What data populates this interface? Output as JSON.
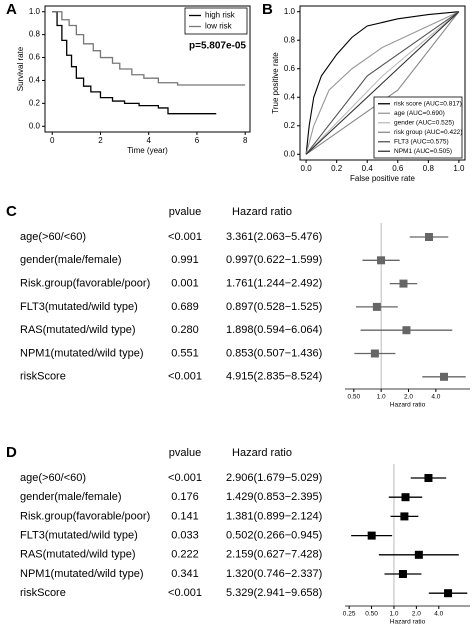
{
  "chart_data": [
    {
      "type": "step",
      "panel": "A",
      "xlabel": "Time (year)",
      "ylabel": "Survival rate",
      "annotation": "p=5.807e-05",
      "xlim": [
        -0.3,
        8.2
      ],
      "ylim": [
        -0.05,
        1.05
      ],
      "xticks": [
        0,
        2,
        4,
        6,
        8
      ],
      "yticks": [
        {
          "value": 0,
          "label": "0.0"
        },
        0.2,
        0.4,
        0.6,
        0.8,
        {
          "value": 1,
          "label": "1.0"
        }
      ],
      "legend": "upper right",
      "series": [
        {
          "name": "high risk",
          "color": "#000000",
          "x": [
            0,
            0.2,
            0.4,
            0.6,
            0.8,
            1.0,
            1.3,
            1.6,
            2.0,
            2.5,
            3.0,
            3.6,
            4.4,
            4.8,
            6.8
          ],
          "values": [
            1,
            0.88,
            0.75,
            0.62,
            0.52,
            0.42,
            0.35,
            0.3,
            0.25,
            0.22,
            0.2,
            0.18,
            0.16,
            0.11,
            0.11
          ]
        },
        {
          "name": "low risk",
          "color": "#777777",
          "x": [
            0,
            0.4,
            0.7,
            1.0,
            1.3,
            1.7,
            2.0,
            2.5,
            2.8,
            3.3,
            3.8,
            4.4,
            5.2,
            8.0
          ],
          "values": [
            1,
            0.93,
            0.88,
            0.8,
            0.72,
            0.66,
            0.6,
            0.55,
            0.5,
            0.45,
            0.42,
            0.38,
            0.36,
            0.36
          ]
        }
      ]
    },
    {
      "type": "line",
      "panel": "B",
      "xlabel": "False positive rate",
      "ylabel": "True positive rate",
      "xlim": [
        -0.04,
        1.04
      ],
      "ylim": [
        -0.04,
        1.04
      ],
      "xticks": [
        {
          "value": 0,
          "label": "0.0"
        },
        0.2,
        0.4,
        0.6,
        0.8,
        {
          "value": 1,
          "label": "1.0"
        }
      ],
      "yticks": [
        {
          "value": 0,
          "label": "0.0"
        },
        0.2,
        0.4,
        0.6,
        0.8,
        {
          "value": 1,
          "label": "1.0"
        }
      ],
      "legend": "lower right",
      "series": [
        {
          "name": "risk score (AUC=0.817)",
          "color": "#000000",
          "x": [
            0,
            0.02,
            0.05,
            0.1,
            0.2,
            0.3,
            0.4,
            0.6,
            0.8,
            1
          ],
          "values": [
            0,
            0.2,
            0.4,
            0.55,
            0.7,
            0.82,
            0.9,
            0.95,
            0.98,
            1
          ]
        },
        {
          "name": "age (AUC=0.690)",
          "color": "#999999",
          "x": [
            0,
            0.05,
            0.15,
            0.3,
            0.5,
            0.7,
            1
          ],
          "values": [
            0,
            0.2,
            0.45,
            0.6,
            0.75,
            0.85,
            1
          ]
        },
        {
          "name": "gender (AUC=0.525)",
          "color": "#bbbbbb",
          "x": [
            0,
            0.5,
            1
          ],
          "values": [
            0,
            0.55,
            1
          ]
        },
        {
          "name": "risk group (AUC=0.422)",
          "color": "#888888",
          "x": [
            0,
            0.6,
            1
          ],
          "values": [
            0,
            0.45,
            1
          ]
        },
        {
          "name": "FLT3 (AUC=0.575)",
          "color": "#555555",
          "x": [
            0,
            0.4,
            1
          ],
          "values": [
            0,
            0.55,
            1
          ]
        },
        {
          "name": "NPM1 (AUC=0.505)",
          "color": "#333333",
          "x": [
            0,
            0.5,
            1
          ],
          "values": [
            0,
            0.5,
            1
          ]
        }
      ]
    },
    {
      "type": "forest",
      "panel": "C",
      "columns": [
        "pvalue",
        "Hazard ratio"
      ],
      "xlabel": "Hazard ratio",
      "log_x": true,
      "color": "#666666",
      "reference_line": 1,
      "xlim": [
        0.4,
        9.5
      ],
      "xticks": [
        {
          "value": 0.5,
          "label": "0.50"
        },
        {
          "value": 1,
          "label": "1.0"
        },
        {
          "value": 2,
          "label": "2.0"
        },
        {
          "value": 4,
          "label": "4.0"
        }
      ],
      "categories": [
        "age(>60/<60)",
        "gender(male/female)",
        "Risk.group(favorable/poor)",
        "FLT3(mutated/wild type)",
        "RAS(mutated/wild type)",
        "NPM1(mutated/wild type)",
        "riskScore"
      ],
      "pvalues": [
        "<0.001",
        "0.991",
        "0.001",
        "0.689",
        "0.280",
        "0.551",
        "<0.001"
      ],
      "values": [
        3.361,
        0.997,
        1.761,
        0.897,
        1.898,
        0.853,
        4.915
      ],
      "lower": [
        2.063,
        0.622,
        1.244,
        0.528,
        0.594,
        0.507,
        2.835
      ],
      "upper": [
        5.476,
        1.599,
        2.492,
        1.525,
        6.064,
        1.436,
        8.524
      ],
      "value_labels": [
        "3.361(2.063−5.476)",
        "0.997(0.622−1.599)",
        "1.761(1.244−2.492)",
        "0.897(0.528−1.525)",
        "1.898(0.594−6.064)",
        "0.853(0.507−1.436)",
        "4.915(2.835−8.524)"
      ]
    },
    {
      "type": "forest",
      "panel": "D",
      "columns": [
        "pvalue",
        "Hazard ratio"
      ],
      "xlabel": "Hazard ratio",
      "log_x": true,
      "color": "#000000",
      "reference_line": 1,
      "xlim": [
        0.22,
        10.5
      ],
      "xticks": [
        {
          "value": 0.25,
          "label": "0.25"
        },
        {
          "value": 0.5,
          "label": "0.50"
        },
        {
          "value": 1,
          "label": "1.0"
        },
        {
          "value": 2,
          "label": "2.0"
        },
        {
          "value": 4,
          "label": "4.0"
        }
      ],
      "categories": [
        "age(>60/<60)",
        "gender(male/female)",
        "Risk.group(favorable/poor)",
        "FLT3(mutated/wild type)",
        "RAS(mutated/wild type)",
        "NPM1(mutated/wild type)",
        "riskScore"
      ],
      "pvalues": [
        "<0.001",
        "0.176",
        "0.141",
        "0.033",
        "0.222",
        "0.341",
        "<0.001"
      ],
      "values": [
        2.906,
        1.429,
        1.381,
        0.502,
        2.159,
        1.32,
        5.329
      ],
      "lower": [
        1.679,
        0.853,
        0.899,
        0.266,
        0.627,
        0.746,
        2.941
      ],
      "upper": [
        5.029,
        2.395,
        2.124,
        0.945,
        7.428,
        2.337,
        9.658
      ],
      "value_labels": [
        "2.906(1.679−5.029)",
        "1.429(0.853−2.395)",
        "1.381(0.899−2.124)",
        "0.502(0.266−0.945)",
        "2.159(0.627−7.428)",
        "1.320(0.746−2.337)",
        "5.329(2.941−9.658)"
      ]
    }
  ]
}
